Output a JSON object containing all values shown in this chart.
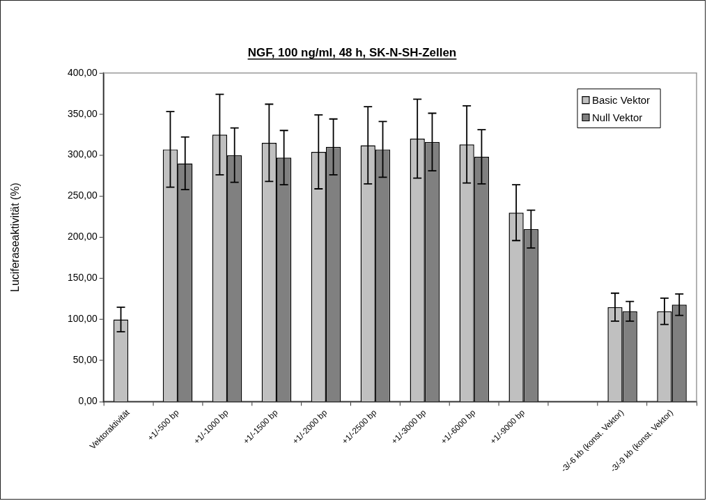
{
  "chart_data": {
    "type": "bar",
    "title": "NGF, 100 ng/ml, 48 h, SK-N-SH-Zellen",
    "ylabel": "Luciferaseaktivität (%)",
    "categories": [
      "Vektoraktivität",
      "+1/-500 bp",
      "+1/-1000 bp",
      "+1/-1500 bp",
      "+1/-2000 bp",
      "+1/-2500 bp",
      "+1/-3000 bp",
      "+1/-6000 bp",
      "+1/-9000 bp",
      null,
      "-3/-6 kb (konst. Vektor)",
      "-3/-9 kb (konst. Vektor)"
    ],
    "series": [
      {
        "name": "Basic Vektor",
        "color": "#c0c0c0",
        "values": [
          100,
          307,
          325,
          315,
          304,
          312,
          320,
          313,
          230,
          null,
          115,
          110
        ],
        "errors": [
          15,
          46,
          49,
          47,
          45,
          47,
          48,
          47,
          34,
          null,
          17,
          16
        ]
      },
      {
        "name": "Null Vektor",
        "color": "#808080",
        "values": [
          null,
          290,
          300,
          297,
          310,
          307,
          316,
          298,
          210,
          null,
          110,
          118
        ],
        "errors": [
          null,
          32,
          33,
          33,
          34,
          34,
          35,
          33,
          23,
          null,
          12,
          13
        ]
      }
    ],
    "ylim": [
      0,
      400
    ],
    "yticks": [
      {
        "value": 0,
        "label": "0,00"
      },
      {
        "value": 50,
        "label": "50,00"
      },
      {
        "value": 100,
        "label": "100,00"
      },
      {
        "value": 150,
        "label": "150,00"
      },
      {
        "value": 200,
        "label": "200,00"
      },
      {
        "value": 250,
        "label": "250,00"
      },
      {
        "value": 300,
        "label": "300,00"
      },
      {
        "value": 350,
        "label": "350,00"
      },
      {
        "value": 400,
        "label": "400,00"
      }
    ],
    "legend": "top right"
  }
}
